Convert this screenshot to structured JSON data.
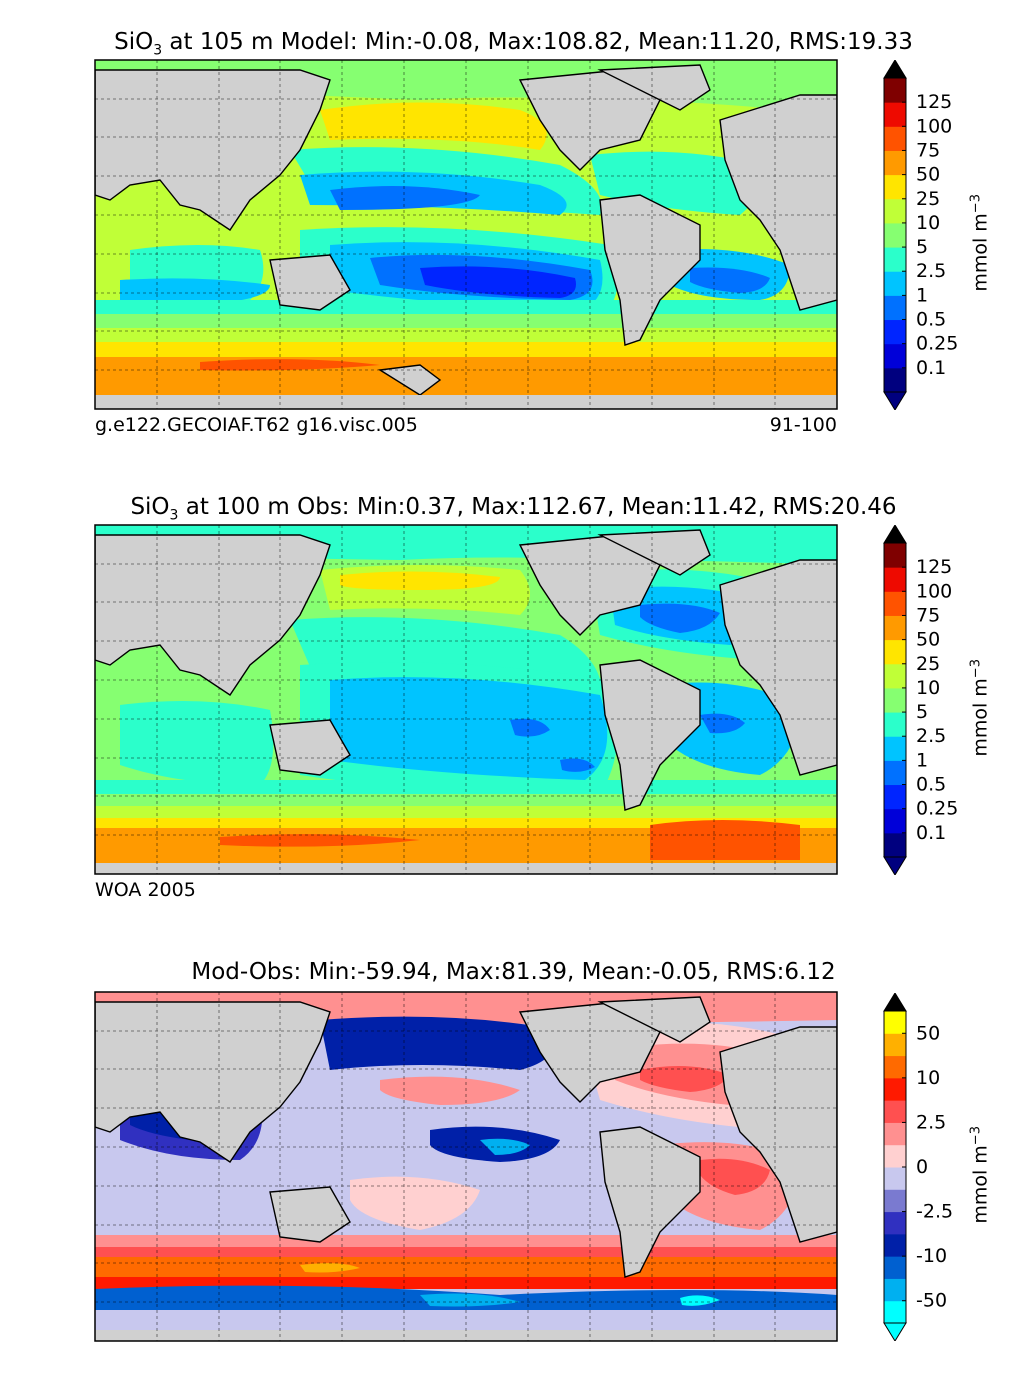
{
  "panels": [
    {
      "title_prefix": "SiO",
      "title_sub": "3",
      "title_rest": " at 105 m Model: Min:-0.08, Max:108.82, Mean:11.20, RMS:19.33",
      "caption_left": "g.e122.GECOIAF.T62 g16.visc.005",
      "caption_right": "91-100",
      "colorbar": {
        "colors": [
          "#00007f",
          "#0000d9",
          "#0025ff",
          "#0071ff",
          "#00c4ff",
          "#2bffcb",
          "#86ff71",
          "#c0ff37",
          "#ffe500",
          "#ff9a00",
          "#ff5300",
          "#ee0a00",
          "#7f0000"
        ],
        "tick_labels": [
          "0.1",
          "0.25",
          "0.5",
          "1",
          "2.5",
          "5",
          "10",
          "25",
          "50",
          "75",
          "100",
          "125"
        ]
      },
      "unit_main": "mmol m",
      "unit_sup": "−3"
    },
    {
      "title_prefix": "SiO",
      "title_sub": "3",
      "title_rest": " at 100 m Obs: Min:0.37, Max:112.67, Mean:11.42, RMS:20.46",
      "caption_left": "WOA 2005",
      "caption_right": "",
      "colorbar": {
        "colors": [
          "#00007f",
          "#0000d9",
          "#0025ff",
          "#0071ff",
          "#00c4ff",
          "#2bffcb",
          "#86ff71",
          "#c0ff37",
          "#ffe500",
          "#ff9a00",
          "#ff5300",
          "#ee0a00",
          "#7f0000"
        ],
        "tick_labels": [
          "0.1",
          "0.25",
          "0.5",
          "1",
          "2.5",
          "5",
          "10",
          "25",
          "50",
          "75",
          "100",
          "125"
        ]
      },
      "unit_main": "mmol m",
      "unit_sup": "−3"
    },
    {
      "title_prefix": "",
      "title_sub": "",
      "title_rest": "Mod-Obs: Min:-59.94, Max:81.39, Mean:-0.05, RMS:6.12",
      "caption_left": "",
      "caption_right": "",
      "colorbar": {
        "colors": [
          "#00ffff",
          "#00b0f0",
          "#0060d0",
          "#0020a8",
          "#3030c0",
          "#7a7ad0",
          "#c8c8ee",
          "#ffd0d0",
          "#ff9090",
          "#ff5050",
          "#ff1a00",
          "#ff6a00",
          "#ffb000",
          "#ffff00"
        ],
        "tick_labels": [
          "-50",
          "-10",
          "-2.5",
          "0",
          "2.5",
          "10",
          "50"
        ]
      },
      "unit_main": "mmol m",
      "unit_sup": "−3"
    }
  ],
  "chart_data": [
    {
      "type": "heatmap",
      "title": "SiO3 at 105 m Model: Min:-0.08, Max:108.82, Mean:11.20, RMS:19.33",
      "variable": "SiO3",
      "depth": "105 m",
      "stats": {
        "min": -0.08,
        "max": 108.82,
        "mean": 11.2,
        "rms": 19.33
      },
      "colorbar_levels": [
        0.1,
        0.25,
        0.5,
        1,
        2.5,
        5,
        10,
        25,
        50,
        75,
        100,
        125
      ],
      "colorbar_extend": "both",
      "units": "mmol m^-3",
      "caption": [
        "g.e122.GECOIAF.T62 g16.visc.005",
        "91-100"
      ],
      "map": "global ocean, land masked grey, dashed graticule"
    },
    {
      "type": "heatmap",
      "title": "SiO3 at 100 m Obs: Min:0.37, Max:112.67, Mean:11.42, RMS:20.46",
      "variable": "SiO3",
      "depth": "100 m",
      "stats": {
        "min": 0.37,
        "max": 112.67,
        "mean": 11.42,
        "rms": 20.46
      },
      "colorbar_levels": [
        0.1,
        0.25,
        0.5,
        1,
        2.5,
        5,
        10,
        25,
        50,
        75,
        100,
        125
      ],
      "colorbar_extend": "both",
      "units": "mmol m^-3",
      "caption": [
        "WOA 2005"
      ],
      "map": "global ocean, land masked grey, dashed graticule"
    },
    {
      "type": "heatmap",
      "title": "Mod-Obs: Min:-59.94, Max:81.39, Mean:-0.05, RMS:6.12",
      "stats": {
        "min": -59.94,
        "max": 81.39,
        "mean": -0.05,
        "rms": 6.12
      },
      "colorbar_levels_labeled": [
        -50,
        -10,
        -2.5,
        0,
        2.5,
        10,
        50
      ],
      "colorbar_extend": "both",
      "units": "mmol m^-3",
      "map": "global ocean, land masked grey, dashed graticule"
    }
  ]
}
